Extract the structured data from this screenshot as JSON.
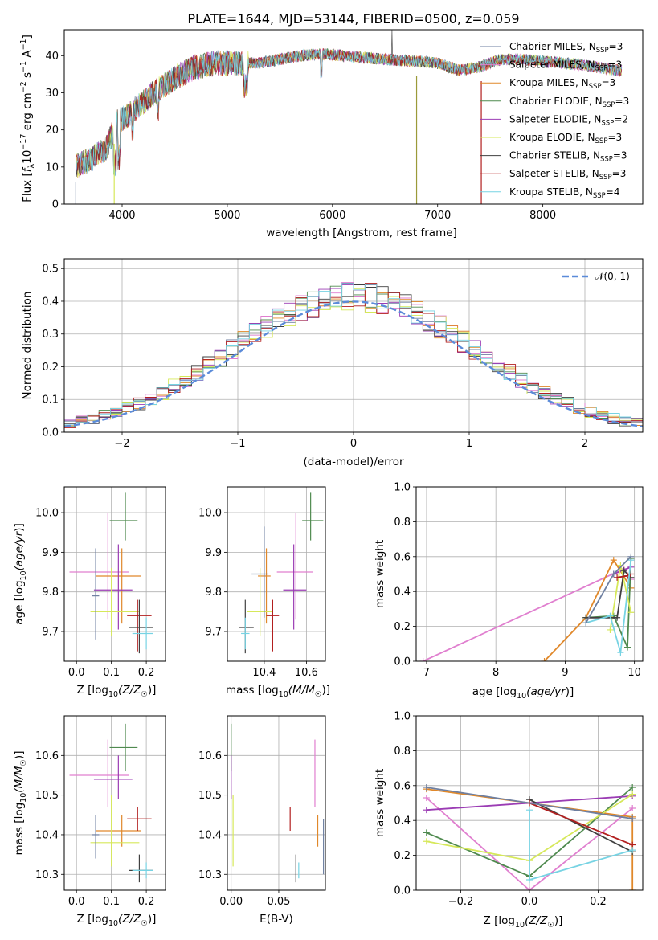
{
  "figure": {
    "title": "PLATE=1644, MJD=53144, FIBERID=0500, z=0.059"
  },
  "colors": [
    "#6e7fa0",
    "#e07fcf",
    "#e0882a",
    "#4f8a4f",
    "#9b3cb4",
    "#d6e85a",
    "#404040",
    "#b21f1f",
    "#77d3e3"
  ],
  "chart_data": [
    {
      "id": "spectrum",
      "type": "line",
      "title": "PLATE=1644, MJD=53144, FIBERID=0500, z=0.059",
      "xlabel": "wavelength [Angstrom, rest frame]",
      "ylabel_tex": "Flux [f_λ 10^-17 erg cm^-2 s^-1 A^-1]",
      "ylabel_parts": [
        "Flux [",
        "f",
        "λ",
        "10",
        "−17",
        " erg cm",
        "−2",
        " s",
        "−1",
        " A",
        "−1",
        "]"
      ],
      "xlim": [
        3450,
        8950
      ],
      "ylim": [
        0,
        47
      ],
      "xticks": [
        4000,
        5000,
        6000,
        7000,
        8000
      ],
      "yticks": [
        0,
        10,
        20,
        30,
        40
      ],
      "grid": false,
      "legend_position": "top-right",
      "series": [
        {
          "name": "Chabrier MILES, N",
          "sub": "SSP",
          "suffix": "=3"
        },
        {
          "name": "Salpeter MILES, N",
          "sub": "SSP",
          "suffix": "=3"
        },
        {
          "name": "Kroupa MILES, N",
          "sub": "SSP",
          "suffix": "=3"
        },
        {
          "name": "Chabrier ELODIE, N",
          "sub": "SSP",
          "suffix": "=3"
        },
        {
          "name": "Salpeter ELODIE, N",
          "sub": "SSP",
          "suffix": "=2"
        },
        {
          "name": "Kroupa ELODIE, N",
          "sub": "SSP",
          "suffix": "=3"
        },
        {
          "name": "Chabrier STELIB, N",
          "sub": "SSP",
          "suffix": "=3"
        },
        {
          "name": "Salpeter STELIB, N",
          "sub": "SSP",
          "suffix": "=3"
        },
        {
          "name": "Kroupa STELIB, N",
          "sub": "SSP",
          "suffix": "=4"
        }
      ],
      "continuum_knots": [
        [
          3560,
          10
        ],
        [
          3700,
          12
        ],
        [
          3850,
          15
        ],
        [
          3950,
          22
        ],
        [
          4100,
          25
        ],
        [
          4300,
          30
        ],
        [
          4500,
          34
        ],
        [
          4700,
          37
        ],
        [
          4900,
          38
        ],
        [
          5100,
          38
        ],
        [
          5300,
          38
        ],
        [
          5500,
          39
        ],
        [
          5700,
          40
        ],
        [
          5900,
          40.5
        ],
        [
          6100,
          40
        ],
        [
          6300,
          39.5
        ],
        [
          6500,
          39
        ],
        [
          6800,
          38.5
        ],
        [
          7000,
          38
        ],
        [
          7200,
          36
        ],
        [
          7400,
          37
        ],
        [
          7600,
          39
        ],
        [
          7800,
          39
        ],
        [
          8000,
          38.5
        ],
        [
          8200,
          38
        ],
        [
          8400,
          37.5
        ],
        [
          8600,
          36.5
        ],
        [
          8750,
          36
        ]
      ],
      "dropouts": [
        [
          3560,
          0
        ],
        [
          3925,
          0
        ],
        [
          6800,
          0
        ],
        [
          7415,
          0
        ]
      ],
      "peak": [
        6570,
        47
      ]
    },
    {
      "id": "residuals",
      "type": "histogram",
      "xlabel": "(data-model)/error",
      "ylabel": "Normed distribution",
      "xlim": [
        -2.5,
        2.5
      ],
      "ylim": [
        0,
        0.53
      ],
      "xticks": [
        -2,
        -1,
        0,
        1,
        2
      ],
      "yticks": [
        0.0,
        0.1,
        0.2,
        0.3,
        0.4,
        0.5
      ],
      "bin_width": 0.1,
      "grid": true,
      "legend_position": "top-right",
      "reference": {
        "name": "N(0,1)",
        "type": "gaussian",
        "mean": 0,
        "sigma": 1,
        "style": "dashed"
      }
    },
    {
      "id": "age_vs_Z",
      "type": "errorbar",
      "xlabel": "Z [log10(Z/Z_sun)]",
      "ylabel": "age  [log10(age/yr)]",
      "xlim": [
        -0.035,
        0.255
      ],
      "ylim": [
        9.625,
        10.065
      ],
      "xticks": [
        0.0,
        0.1,
        0.2
      ],
      "yticks": [
        9.7,
        9.8,
        9.9,
        10.0
      ],
      "grid": true,
      "points": [
        {
          "x": 0.14,
          "y": 9.98,
          "xerr": [
            0.045,
            0.035
          ],
          "yerr": [
            0.05,
            0.07
          ]
        },
        {
          "x": 0.09,
          "y": 9.85,
          "xerr": [
            0.11,
            0.06
          ],
          "yerr": [
            0.12,
            0.15
          ]
        },
        {
          "x": 0.13,
          "y": 9.84,
          "xerr": [
            0.075,
            0.055
          ],
          "yerr": [
            0.12,
            0.07
          ]
        },
        {
          "x": 0.12,
          "y": 9.805,
          "xerr": [
            0.07,
            0.04
          ],
          "yerr": [
            0.1,
            0.115
          ]
        },
        {
          "x": 0.1,
          "y": 9.75,
          "xerr": [
            0.06,
            0.08
          ],
          "yerr": [
            0.06,
            0.11
          ]
        },
        {
          "x": 0.175,
          "y": 9.74,
          "xerr": [
            0.03,
            0.04
          ],
          "yerr": [
            0.09,
            0.04
          ]
        },
        {
          "x": 0.18,
          "y": 9.71,
          "xerr": [
            0.03,
            0.04
          ],
          "yerr": [
            0.065,
            0.07
          ]
        },
        {
          "x": 0.2,
          "y": 9.695,
          "xerr": [
            0.04,
            0.02
          ],
          "yerr": [
            0.04,
            0.04
          ]
        },
        {
          "x": 0.055,
          "y": 9.79,
          "xerr": [
            0.01,
            0.01
          ],
          "yerr": [
            0.11,
            0.12
          ]
        }
      ],
      "point_colors": [
        "#4f8a4f",
        "#e07fcf",
        "#e0882a",
        "#9b3cb4",
        "#d6e85a",
        "#b21f1f",
        "#404040",
        "#77d3e3",
        "#6e7fa0"
      ]
    },
    {
      "id": "age_vs_mass",
      "type": "errorbar",
      "xlabel": "mass [log10(M/M_sun)]",
      "ylabel": "",
      "xlim": [
        10.225,
        10.69
      ],
      "ylim": [
        9.625,
        10.065
      ],
      "xticks": [
        10.4,
        10.6
      ],
      "yticks": [
        9.7,
        9.8,
        9.9,
        10.0
      ],
      "grid": true,
      "points": [
        {
          "x": 10.62,
          "y": 9.98,
          "xerr": [
            0.04,
            0.06
          ],
          "yerr": [
            0.05,
            0.07
          ]
        },
        {
          "x": 10.55,
          "y": 9.85,
          "xerr": [
            0.09,
            0.08
          ],
          "yerr": [
            0.12,
            0.15
          ]
        },
        {
          "x": 10.41,
          "y": 9.84,
          "xerr": [
            0.04,
            0.02
          ],
          "yerr": [
            0.12,
            0.07
          ]
        },
        {
          "x": 10.54,
          "y": 9.805,
          "xerr": [
            0.05,
            0.06
          ],
          "yerr": [
            0.1,
            0.115
          ]
        },
        {
          "x": 10.38,
          "y": 9.75,
          "xerr": [
            0.06,
            0.06
          ],
          "yerr": [
            0.06,
            0.11
          ]
        },
        {
          "x": 10.44,
          "y": 9.74,
          "xerr": [
            0.03,
            0.03
          ],
          "yerr": [
            0.09,
            0.04
          ]
        },
        {
          "x": 10.31,
          "y": 9.71,
          "xerr": [
            0.03,
            0.04
          ],
          "yerr": [
            0.065,
            0.07
          ]
        },
        {
          "x": 10.31,
          "y": 9.695,
          "xerr": [
            0.02,
            0.02
          ],
          "yerr": [
            0.04,
            0.04
          ]
        },
        {
          "x": 10.4,
          "y": 9.845,
          "xerr": [
            0.06,
            0.02
          ],
          "yerr": [
            0.11,
            0.12
          ]
        }
      ],
      "point_colors": [
        "#4f8a4f",
        "#e07fcf",
        "#e0882a",
        "#9b3cb4",
        "#d6e85a",
        "#b21f1f",
        "#404040",
        "#77d3e3",
        "#6e7fa0"
      ]
    },
    {
      "id": "mass_weight_vs_age",
      "type": "line",
      "xlabel": "age  [log10(age/yr)]",
      "ylabel": "mass weight",
      "xlim": [
        6.85,
        10.12
      ],
      "ylim": [
        0,
        1.0
      ],
      "xticks": [
        7,
        8,
        9,
        10
      ],
      "yticks": [
        0.0,
        0.2,
        0.4,
        0.6,
        0.8,
        1.0
      ],
      "grid": true,
      "series": [
        {
          "x": [
            6.95,
            9.85,
            9.95
          ],
          "y": [
            0.0,
            0.53,
            0.47
          ]
        },
        {
          "x": [
            8.7,
            9.3,
            9.7,
            9.95
          ],
          "y": [
            0.0,
            0.25,
            0.58,
            0.42
          ]
        },
        {
          "x": [
            9.3,
            9.7,
            9.9,
            9.95
          ],
          "y": [
            0.25,
            0.26,
            0.08,
            0.59
          ]
        },
        {
          "x": [
            9.7,
            9.95
          ],
          "y": [
            0.5,
            0.54
          ]
        },
        {
          "x": [
            9.65,
            9.8,
            9.95
          ],
          "y": [
            0.18,
            0.55,
            0.28
          ]
        },
        {
          "x": [
            9.3,
            9.75,
            9.85,
            9.95
          ],
          "y": [
            0.25,
            0.25,
            0.52,
            0.48
          ]
        },
        {
          "x": [
            9.75,
            9.9,
            9.95
          ],
          "y": [
            0.48,
            0.49,
            0.5
          ]
        },
        {
          "x": [
            9.3,
            9.65,
            9.8,
            9.95
          ],
          "y": [
            0.22,
            0.26,
            0.05,
            0.58
          ]
        },
        {
          "x": [
            9.3,
            9.7,
            9.95
          ],
          "y": [
            0.22,
            0.5,
            0.6
          ]
        }
      ],
      "series_colors": [
        "#e07fcf",
        "#e0882a",
        "#4f8a4f",
        "#9b3cb4",
        "#d6e85a",
        "#404040",
        "#b21f1f",
        "#77d3e3",
        "#6e7fa0"
      ]
    },
    {
      "id": "mass_vs_Z",
      "type": "errorbar",
      "xlabel": "Z [log10(Z/Z_sun)]",
      "ylabel": "mass [log10(M/M_sun)]",
      "xlim": [
        -0.035,
        0.255
      ],
      "ylim": [
        10.26,
        10.7
      ],
      "xticks": [
        0.0,
        0.1,
        0.2
      ],
      "yticks": [
        10.3,
        10.4,
        10.5,
        10.6
      ],
      "grid": true,
      "points": [
        {
          "x": 0.14,
          "y": 10.62,
          "xerr": [
            0.045,
            0.035
          ],
          "yerr": [
            0.06,
            0.06
          ]
        },
        {
          "x": 0.09,
          "y": 10.55,
          "xerr": [
            0.11,
            0.06
          ],
          "yerr": [
            0.08,
            0.09
          ]
        },
        {
          "x": 0.13,
          "y": 10.41,
          "xerr": [
            0.075,
            0.055
          ],
          "yerr": [
            0.04,
            0.04
          ]
        },
        {
          "x": 0.12,
          "y": 10.54,
          "xerr": [
            0.07,
            0.04
          ],
          "yerr": [
            0.05,
            0.06
          ]
        },
        {
          "x": 0.1,
          "y": 10.38,
          "xerr": [
            0.06,
            0.08
          ],
          "yerr": [
            0.06,
            0.12
          ]
        },
        {
          "x": 0.175,
          "y": 10.44,
          "xerr": [
            0.03,
            0.04
          ],
          "yerr": [
            0.03,
            0.03
          ]
        },
        {
          "x": 0.18,
          "y": 10.31,
          "xerr": [
            0.03,
            0.04
          ],
          "yerr": [
            0.03,
            0.04
          ]
        },
        {
          "x": 0.2,
          "y": 10.31,
          "xerr": [
            0.04,
            0.02
          ],
          "yerr": [
            0.02,
            0.02
          ]
        },
        {
          "x": 0.055,
          "y": 10.4,
          "xerr": [
            0.01,
            0.01
          ],
          "yerr": [
            0.06,
            0.05
          ]
        }
      ],
      "point_colors": [
        "#4f8a4f",
        "#e07fcf",
        "#e0882a",
        "#9b3cb4",
        "#d6e85a",
        "#b21f1f",
        "#404040",
        "#77d3e3",
        "#6e7fa0"
      ]
    },
    {
      "id": "mass_vs_ebv",
      "type": "errorbar",
      "xlabel": "E(B-V)",
      "ylabel": "",
      "xlim": [
        -0.004,
        0.099
      ],
      "ylim": [
        10.26,
        10.7
      ],
      "xticks": [
        0.0,
        0.05
      ],
      "yticks": [
        10.3,
        10.4,
        10.5,
        10.6
      ],
      "grid": true,
      "points": [
        {
          "x": 0.0,
          "y": 10.62,
          "xerr": [
            0,
            0
          ],
          "yerr": [
            0.06,
            0.06
          ]
        },
        {
          "x": 0.088,
          "y": 10.55,
          "xerr": [
            0,
            0
          ],
          "yerr": [
            0.08,
            0.09
          ]
        },
        {
          "x": 0.091,
          "y": 10.41,
          "xerr": [
            0,
            0
          ],
          "yerr": [
            0.04,
            0.04
          ]
        },
        {
          "x": 0.0,
          "y": 10.54,
          "xerr": [
            0,
            0
          ],
          "yerr": [
            0.05,
            0.06
          ]
        },
        {
          "x": 0.002,
          "y": 10.38,
          "xerr": [
            0,
            0
          ],
          "yerr": [
            0.06,
            0.12
          ]
        },
        {
          "x": 0.062,
          "y": 10.44,
          "xerr": [
            0,
            0
          ],
          "yerr": [
            0.03,
            0.03
          ]
        },
        {
          "x": 0.068,
          "y": 10.31,
          "xerr": [
            0,
            0
          ],
          "yerr": [
            0.03,
            0.04
          ]
        },
        {
          "x": 0.071,
          "y": 10.31,
          "xerr": [
            0,
            0
          ],
          "yerr": [
            0.02,
            0.02
          ]
        },
        {
          "x": 0.097,
          "y": 10.37,
          "xerr": [
            0,
            0
          ],
          "yerr": [
            0.07,
            0.07
          ]
        }
      ],
      "point_colors": [
        "#4f8a4f",
        "#e07fcf",
        "#e0882a",
        "#9b3cb4",
        "#d6e85a",
        "#b21f1f",
        "#404040",
        "#77d3e3",
        "#6e7fa0"
      ]
    },
    {
      "id": "mass_weight_vs_Z",
      "type": "line",
      "xlabel": "Z [log10(Z/Z_sun)]",
      "ylabel": "mass weight",
      "xlim": [
        -0.33,
        0.33
      ],
      "ylim": [
        0,
        1.0
      ],
      "xticks": [
        -0.2,
        0.0,
        0.2
      ],
      "yticks": [
        0.0,
        0.2,
        0.4,
        0.6,
        0.8,
        1.0
      ],
      "grid": true,
      "series": [
        {
          "x": [
            -0.3,
            0.0,
            0.3
          ],
          "y": [
            0.53,
            0.0,
            0.47
          ]
        },
        {
          "x": [
            -0.3,
            0.0,
            0.3,
            0.3
          ],
          "y": [
            0.58,
            0.5,
            0.42,
            0.0
          ]
        },
        {
          "x": [
            -0.3,
            0.0,
            0.3
          ],
          "y": [
            0.33,
            0.08,
            0.59
          ]
        },
        {
          "x": [
            -0.3,
            0.3
          ],
          "y": [
            0.46,
            0.54
          ]
        },
        {
          "x": [
            -0.3,
            0.0,
            0.3
          ],
          "y": [
            0.28,
            0.17,
            0.55
          ]
        },
        {
          "x": [
            0.0,
            0.3
          ],
          "y": [
            0.52,
            0.22
          ]
        },
        {
          "x": [
            0.0,
            0.3
          ],
          "y": [
            0.5,
            0.26
          ]
        },
        {
          "x": [
            0.0,
            0.0,
            0.3
          ],
          "y": [
            0.46,
            0.06,
            0.23
          ]
        },
        {
          "x": [
            -0.3,
            0.3
          ],
          "y": [
            0.59,
            0.41
          ]
        }
      ],
      "series_colors": [
        "#e07fcf",
        "#e0882a",
        "#4f8a4f",
        "#9b3cb4",
        "#d6e85a",
        "#404040",
        "#b21f1f",
        "#77d3e3",
        "#6e7fa0"
      ]
    }
  ]
}
